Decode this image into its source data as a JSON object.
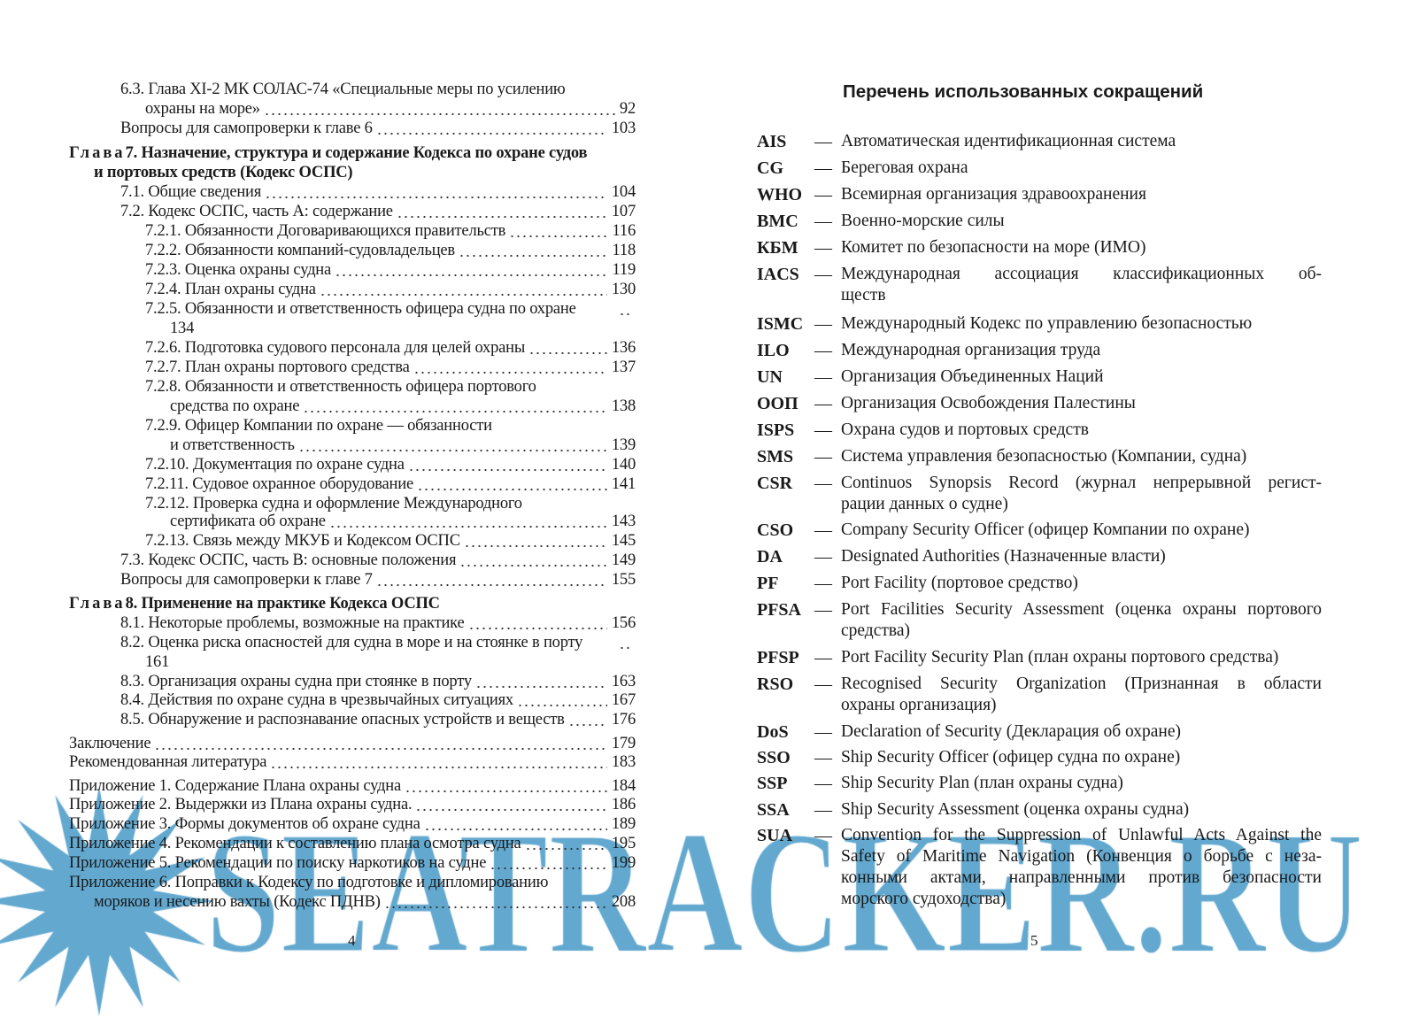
{
  "left_page": {
    "page_number": "4",
    "toc": [
      {
        "level": 1,
        "lines": [
          "6.3. Глава XI-2 МК СОЛАС-74 «Специальные меры по усилению",
          "охраны на море»"
        ],
        "page": "92"
      },
      {
        "level": 1,
        "lines": [
          "Вопросы для самопроверки к главе 6"
        ],
        "page": "103"
      },
      {
        "level": 0,
        "bold": true,
        "label": "Глава",
        "lines": [
          " 7. Назначение, структура и содержание Кодекса по охране судов",
          "и портовых средств (Кодекс ОСПС)"
        ]
      },
      {
        "level": 1,
        "lines": [
          "7.1. Общие сведения"
        ],
        "page": "104"
      },
      {
        "level": 1,
        "lines": [
          "7.2. Кодекс ОСПС, часть А: содержание"
        ],
        "page": "107"
      },
      {
        "level": 2,
        "lines": [
          "7.2.1. Обязанности Договаривающихся правительств"
        ],
        "page": "116"
      },
      {
        "level": 2,
        "lines": [
          "7.2.2. Обязанности компаний-судовладельцев"
        ],
        "page": "118"
      },
      {
        "level": 2,
        "lines": [
          "7.2.3. Оценка охраны судна"
        ],
        "page": "119"
      },
      {
        "level": 2,
        "lines": [
          "7.2.4. План охраны судна"
        ],
        "page": "130"
      },
      {
        "level": 2,
        "lines": [
          "7.2.5. Обязанности и ответственность офицера судна по охране"
        ],
        "page": "134",
        "page_wrapped": true
      },
      {
        "level": 2,
        "lines": [
          "7.2.6. Подготовка судового персонала для целей охраны"
        ],
        "page": "136"
      },
      {
        "level": 2,
        "lines": [
          "7.2.7. План охраны портового средства"
        ],
        "page": "137"
      },
      {
        "level": 2,
        "lines": [
          "7.2.8. Обязанности и ответственность офицера портового",
          "средства по охране"
        ],
        "page": "138"
      },
      {
        "level": 2,
        "lines": [
          "7.2.9. Офицер Компании по охране — обязанности",
          "и ответственность"
        ],
        "page": "139"
      },
      {
        "level": 2,
        "lines": [
          "7.2.10. Документация по охране судна"
        ],
        "page": "140"
      },
      {
        "level": 2,
        "lines": [
          "7.2.11. Судовое охранное оборудование"
        ],
        "page": "141"
      },
      {
        "level": 2,
        "lines": [
          "7.2.12. Проверка судна и оформление Международного",
          "сертификата об охране"
        ],
        "page": "143"
      },
      {
        "level": 2,
        "lines": [
          "7.2.13. Связь между МКУБ и Кодексом ОСПС"
        ],
        "page": "145"
      },
      {
        "level": 1,
        "lines": [
          "7.3. Кодекс ОСПС, часть В: основные положения"
        ],
        "page": "149"
      },
      {
        "level": 1,
        "lines": [
          "Вопросы для самопроверки к главе 7"
        ],
        "page": "155"
      },
      {
        "level": 0,
        "bold": true,
        "label": "Глава",
        "lines": [
          " 8. Применение на практике Кодекса ОСПС"
        ]
      },
      {
        "level": 1,
        "lines": [
          "8.1. Некоторые проблемы, возможные на практике"
        ],
        "page": "156"
      },
      {
        "level": 1,
        "lines": [
          "8.2. Оценка риска опасностей для судна в море и на стоянке в порту"
        ],
        "page": "161",
        "page_wrapped": true
      },
      {
        "level": 1,
        "lines": [
          "8.3. Организация охраны судна при стоянке в порту"
        ],
        "page": "163"
      },
      {
        "level": 1,
        "lines": [
          "8.4. Действия по охране судна в чрезвычайных ситуациях"
        ],
        "page": "167"
      },
      {
        "level": 1,
        "lines": [
          "8.5. Обнаружение и распознавание опасных устройств и веществ"
        ],
        "page": "176"
      },
      {
        "level": 0,
        "lines": [
          "Заключение"
        ],
        "page": "179"
      },
      {
        "level": 0,
        "lines": [
          "Рекомендованная литература"
        ],
        "page": "183"
      },
      {
        "level": 0,
        "lines": [
          "Приложение 1. Содержание Плана охраны судна"
        ],
        "page": "184"
      },
      {
        "level": 0,
        "lines": [
          "Приложение 2. Выдержки из Плана охраны судна."
        ],
        "page": "186"
      },
      {
        "level": 0,
        "lines": [
          "Приложение 3. Формы документов об охране судна"
        ],
        "page": "189"
      },
      {
        "level": 0,
        "lines": [
          "Приложение 4. Рекомендации к составлению плана осмотра судна"
        ],
        "page": "195"
      },
      {
        "level": 0,
        "lines": [
          "Приложение 5. Рекомендации по поиску наркотиков на судне"
        ],
        "page": "199"
      },
      {
        "level": 0,
        "lines": [
          "Приложение 6. Поправки к Кодексу по подготовке и дипломированию",
          "моряков и несению вахты (Кодекс ПДНВ)"
        ],
        "page": "208",
        "cont_indent": 28
      }
    ]
  },
  "right_page": {
    "page_number": "5",
    "title": "Перечень использованных сокращений",
    "dash": "—",
    "abbreviations": [
      {
        "abbr": "AIS",
        "lines": [
          "Автоматическая идентификационная система"
        ]
      },
      {
        "abbr": "CG",
        "lines": [
          "Береговая охрана"
        ]
      },
      {
        "abbr": "WHO",
        "lines": [
          "Всемирная организация здравоохранения"
        ]
      },
      {
        "abbr": "ВМС",
        "lines": [
          "Военно-морские силы"
        ]
      },
      {
        "abbr": "КБМ",
        "lines": [
          "Комитет по безопасности на море (ИМО)"
        ]
      },
      {
        "abbr": "IACS",
        "lines": [
          "Международная ассоциация классификационных об-",
          "ществ"
        ]
      },
      {
        "abbr": "ISMC",
        "lines": [
          "Международный Кодекс по управлению безопасностью"
        ]
      },
      {
        "abbr": "ILO",
        "lines": [
          "Международная организация труда"
        ]
      },
      {
        "abbr": "UN",
        "lines": [
          "Организация Объединенных Наций"
        ]
      },
      {
        "abbr": "ООП",
        "lines": [
          "Организация Освобождения Палестины"
        ]
      },
      {
        "abbr": "ISPS",
        "lines": [
          "Охрана судов и портовых средств"
        ]
      },
      {
        "abbr": "SMS",
        "lines": [
          "Система управления безопасностью (Компании, судна)"
        ]
      },
      {
        "abbr": "CSR",
        "lines": [
          "Continuos Synopsis Record (журнал непрерывной регист-",
          "рации данных о судне)"
        ]
      },
      {
        "abbr": "CSO",
        "lines": [
          "Company Security Officer (офицер Компании по охране)"
        ]
      },
      {
        "abbr": "DA",
        "lines": [
          "Designated Authorities (Назначенные власти)"
        ]
      },
      {
        "abbr": "PF",
        "lines": [
          "Port Facility (портовое средство)"
        ]
      },
      {
        "abbr": "PFSA",
        "lines": [
          "Port Facilities Security Assessment (оценка охраны портового",
          "средства)"
        ]
      },
      {
        "abbr": "PFSP",
        "lines": [
          "Port Facility Security Plan (план охраны портового средства)"
        ]
      },
      {
        "abbr": "RSO",
        "lines": [
          "Recognised Security Organization (Признанная в области",
          "охраны организация)"
        ]
      },
      {
        "abbr": "DoS",
        "lines": [
          "Declaration of Security (Декларация об охране)"
        ]
      },
      {
        "abbr": "SSO",
        "lines": [
          "Ship Security Officer (офицер судна по охране)"
        ]
      },
      {
        "abbr": "SSP",
        "lines": [
          "Ship Security Plan (план охраны судна)"
        ]
      },
      {
        "abbr": "SSA",
        "lines": [
          "Ship Security Assessment (оценка охраны судна)"
        ]
      },
      {
        "abbr": "SUA",
        "lines": [
          "Convention for the Suppression of Unlawful Acts Against the",
          "Safety of Maritime Navigation (Конвенция о борьбе с неза-",
          "конными актами, направленными против безопасности",
          "морского судоходства)"
        ]
      }
    ]
  },
  "watermark": "SEATRACKER.RU",
  "colors": {
    "watermark": "#62a8cf",
    "text": "#1a1a1a"
  }
}
